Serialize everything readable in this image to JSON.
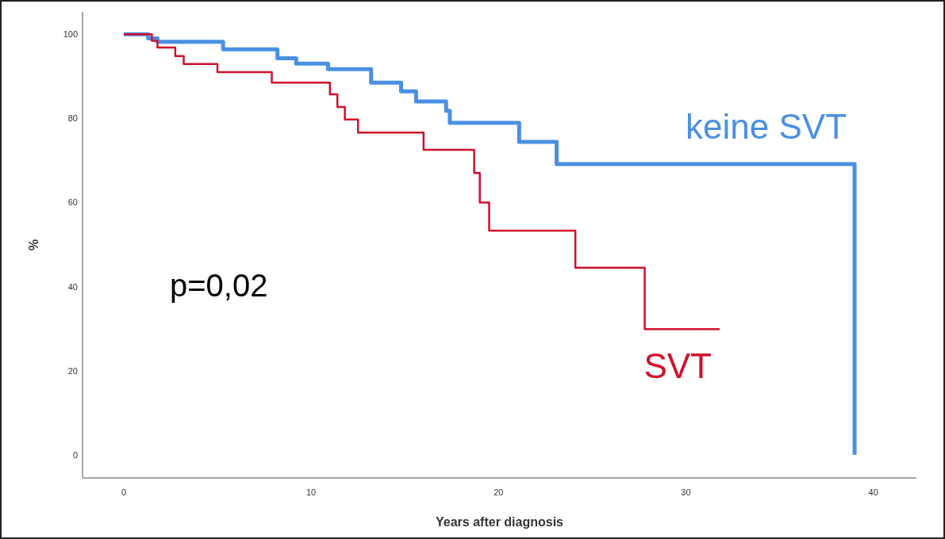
{
  "chart_data": {
    "type": "step",
    "xlabel": "Years after diagnosis",
    "ylabel": "%",
    "annotations": [
      "p=0,02"
    ],
    "xlim": [
      -2.2,
      42.3
    ],
    "ylim": [
      -5.5,
      105.3
    ],
    "xticks": [
      0,
      10,
      20,
      30,
      40
    ],
    "yticks": [
      0,
      20,
      40,
      60,
      80,
      100
    ],
    "grid": false,
    "series": [
      {
        "name": "keine SVT",
        "color": "#4a90e2",
        "x": [
          0,
          1.3,
          1.8,
          5.3,
          8.2,
          9.2,
          10.9,
          13.2,
          14.8,
          15.6,
          17.2,
          17.4,
          21.1,
          23.1,
          39,
          39
        ],
        "values": [
          100,
          99,
          98.2,
          96.4,
          94.3,
          93,
          91.7,
          88.5,
          86.4,
          84,
          81.8,
          78.9,
          74.4,
          69.1,
          69.1,
          0
        ]
      },
      {
        "name": "SVT",
        "color": "#d0102b",
        "x": [
          0,
          1.5,
          1.8,
          2.75,
          3.2,
          5,
          7.9,
          11,
          11.4,
          11.8,
          12.5,
          16,
          18.7,
          19,
          19.5,
          24.1,
          27.8,
          31.8
        ],
        "values": [
          100,
          98.4,
          96.8,
          94.8,
          92.9,
          91,
          88.5,
          85.7,
          82.7,
          79.7,
          76.6,
          72.5,
          67,
          60,
          53.3,
          44.5,
          29.9,
          29.9
        ]
      }
    ]
  }
}
